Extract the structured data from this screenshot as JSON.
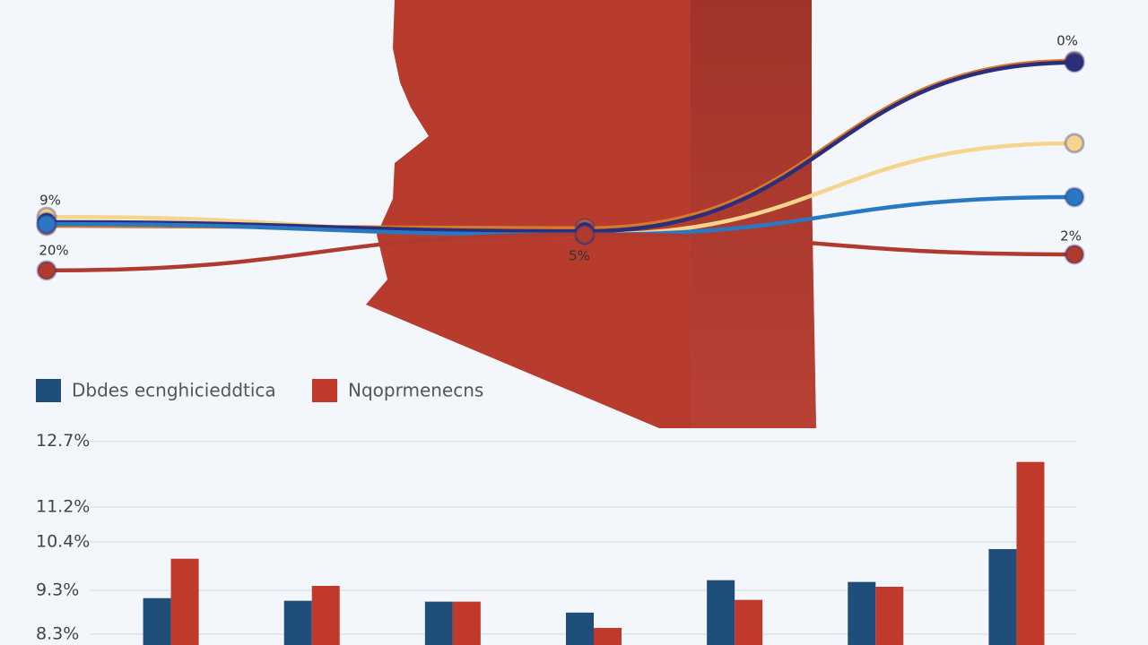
{
  "chart_data": [
    {
      "type": "line",
      "categories": [
        null,
        null,
        null
      ],
      "ylim": [
        0,
        100
      ],
      "series": [
        {
          "color": "#f5d58e",
          "values": [
            30.6,
            24.4,
            56.3
          ]
        },
        {
          "color": "#d9782b",
          "values": [
            27.5,
            26.6,
            85.0
          ]
        },
        {
          "color": "#2b2f7a",
          "values": [
            28.8,
            25.6,
            84.4
          ]
        },
        {
          "color": "#2a78c2",
          "values": [
            28.1,
            24.4,
            37.5
          ]
        },
        {
          "color": "#b03a2e",
          "values": [
            11.9,
            24.4,
            17.5
          ]
        }
      ],
      "annotations": [
        "9%",
        "20%",
        "5%",
        "0%",
        "2%"
      ]
    },
    {
      "type": "bar",
      "categories": [
        null,
        null,
        null,
        null,
        null,
        null,
        null
      ],
      "ylim": [
        8.05,
        12.96
      ],
      "yticks": [
        {
          "value": 12.7,
          "label": "12.7%"
        },
        {
          "value": 11.2,
          "label": "11.2%"
        },
        {
          "value": 10.4,
          "label": "10.4%"
        },
        {
          "value": 9.3,
          "label": "9.3%"
        },
        {
          "value": 8.3,
          "label": "8.3%"
        }
      ],
      "grid": true,
      "series": [
        {
          "name": "Dbdes ecnghicieddtica",
          "color": "#1f4e7a",
          "values": [
            9.12,
            9.06,
            9.04,
            8.79,
            9.53,
            9.49,
            10.24
          ]
        },
        {
          "name": "Nqoprmenecns",
          "color": "#c0392b",
          "values": [
            10.02,
            9.4,
            9.04,
            8.44,
            9.08,
            9.38,
            12.23
          ]
        }
      ]
    }
  ]
}
